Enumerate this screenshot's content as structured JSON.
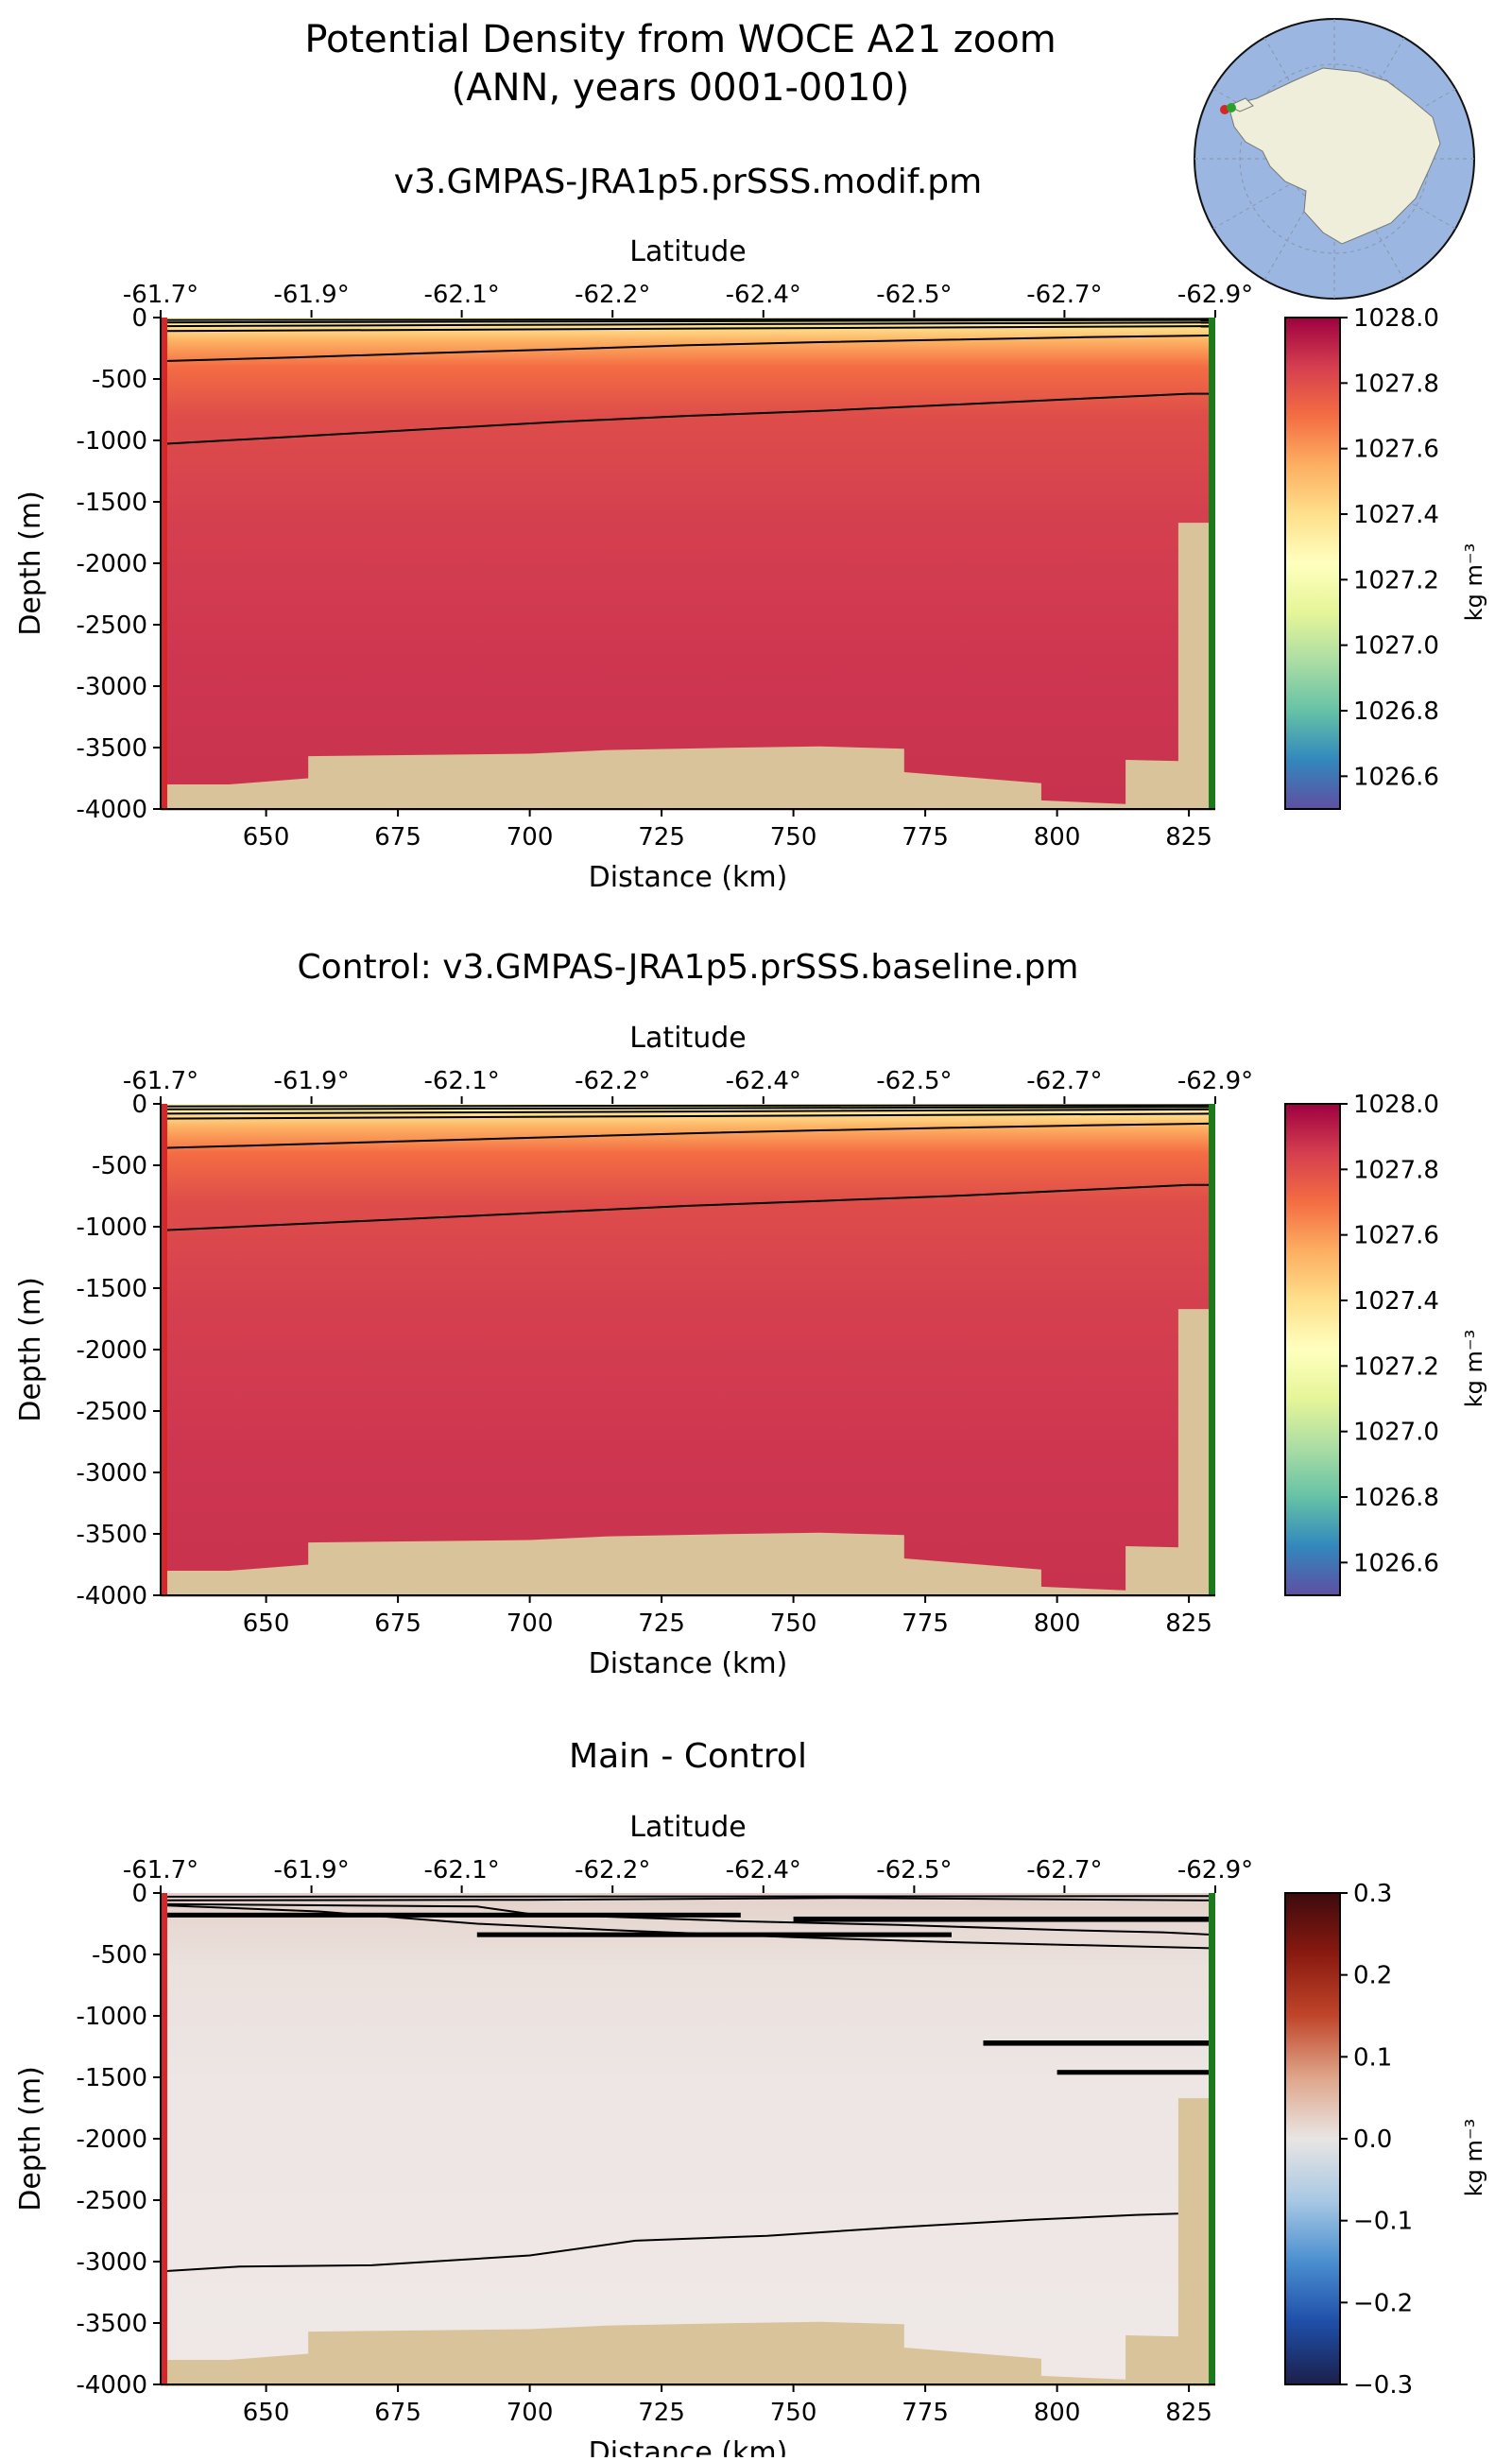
{
  "figure": {
    "title_line1": "Potential Density from WOCE A21 zoom",
    "title_line2": "(ANN, years 0001-0010)"
  },
  "inset_map": {
    "description": "South polar stereographic locator map of Antarctica",
    "ocean_color": "#9bb6e0",
    "land_color": "#efeedb",
    "section_start_color": "#d62728",
    "section_end_color": "#2ca02c"
  },
  "chart_data": [
    {
      "type": "heatmap",
      "title": "v3.GMPAS-JRA1p5.prSSS.modif.pm",
      "xlabel": "Distance (km)",
      "ylabel": "Depth (m)",
      "x2label": "Latitude",
      "xlim": [
        630,
        830
      ],
      "ylim": [
        -4000,
        0
      ],
      "xticks": [
        650,
        675,
        700,
        725,
        750,
        775,
        800,
        825
      ],
      "yticks": [
        0,
        -500,
        -1000,
        -1500,
        -2000,
        -2500,
        -3000,
        -3500,
        -4000
      ],
      "lat_ticks": [
        "-61.7°",
        "-61.9°",
        "-62.1°",
        "-62.2°",
        "-62.4°",
        "-62.5°",
        "-62.7°",
        "-62.9°"
      ],
      "lat_tick_km": [
        630,
        658.6,
        687.1,
        715.7,
        744.3,
        772.9,
        801.4,
        830
      ],
      "colorbar": {
        "label": "kg m⁻³",
        "range": [
          1026.5,
          1028.0
        ],
        "ticks": [
          "1028.0",
          "1027.8",
          "1027.6",
          "1027.4",
          "1027.2",
          "1027.0",
          "1026.8",
          "1026.6"
        ],
        "tick_values": [
          1028.0,
          1027.8,
          1027.6,
          1027.4,
          1027.2,
          1027.0,
          1026.8,
          1026.6
        ],
        "colormap": [
          "#5e4fa2",
          "#3288bd",
          "#66c2a5",
          "#abdda4",
          "#e6f598",
          "#ffffbf",
          "#fee08b",
          "#fdae61",
          "#f46d43",
          "#d53e4f",
          "#9e0142"
        ]
      },
      "contours": [
        {
          "x": [
            630,
            830
          ],
          "y": [
            -20,
            -10
          ]
        },
        {
          "x": [
            630,
            830
          ],
          "y": [
            -40,
            -20
          ]
        },
        {
          "x": [
            630,
            830
          ],
          "y": [
            -70,
            -40
          ]
        },
        {
          "x": [
            630,
            830
          ],
          "y": [
            -110,
            -70
          ]
        },
        {
          "x": [
            630,
            655,
            680,
            705,
            730,
            755,
            780,
            805,
            830
          ],
          "y": [
            -355,
            -325,
            -290,
            -260,
            -225,
            -200,
            -180,
            -160,
            -145
          ]
        },
        {
          "x": [
            630,
            655,
            680,
            705,
            730,
            755,
            780,
            805,
            825,
            830
          ],
          "y": [
            -1030,
            -970,
            -910,
            -850,
            -800,
            -760,
            -710,
            -660,
            -620,
            -620
          ]
        }
      ],
      "bathymetry": {
        "x": [
          630,
          643,
          658,
          658,
          700,
          715,
          740,
          755,
          771,
          771,
          797,
          797,
          813,
          813,
          823,
          823,
          830
        ],
        "depth": [
          -3800,
          -3800,
          -3750,
          -3570,
          -3550,
          -3520,
          -3500,
          -3490,
          -3510,
          -3700,
          -3790,
          -3930,
          -3960,
          -3600,
          -3610,
          -1670,
          -1670
        ]
      },
      "section_endpoints": {
        "start_color": "#d62728",
        "end_color": "#1b7a1b"
      }
    },
    {
      "type": "heatmap",
      "title": "Control: v3.GMPAS-JRA1p5.prSSS.baseline.pm",
      "xlabel": "Distance (km)",
      "ylabel": "Depth (m)",
      "x2label": "Latitude",
      "xlim": [
        630,
        830
      ],
      "ylim": [
        -4000,
        0
      ],
      "xticks": [
        650,
        675,
        700,
        725,
        750,
        775,
        800,
        825
      ],
      "yticks": [
        0,
        -500,
        -1000,
        -1500,
        -2000,
        -2500,
        -3000,
        -3500,
        -4000
      ],
      "lat_ticks": [
        "-61.7°",
        "-61.9°",
        "-62.1°",
        "-62.2°",
        "-62.4°",
        "-62.5°",
        "-62.7°",
        "-62.9°"
      ],
      "lat_tick_km": [
        630,
        658.6,
        687.1,
        715.7,
        744.3,
        772.9,
        801.4,
        830
      ],
      "colorbar": {
        "label": "kg m⁻³",
        "range": [
          1026.5,
          1028.0
        ],
        "ticks": [
          "1028.0",
          "1027.8",
          "1027.6",
          "1027.4",
          "1027.2",
          "1027.0",
          "1026.8",
          "1026.6"
        ],
        "tick_values": [
          1028.0,
          1027.8,
          1027.6,
          1027.4,
          1027.2,
          1027.0,
          1026.8,
          1026.6
        ],
        "colormap": [
          "#5e4fa2",
          "#3288bd",
          "#66c2a5",
          "#abdda4",
          "#e6f598",
          "#ffffbf",
          "#fee08b",
          "#fdae61",
          "#f46d43",
          "#d53e4f",
          "#9e0142"
        ]
      },
      "contours": [
        {
          "x": [
            630,
            830
          ],
          "y": [
            -20,
            -10
          ]
        },
        {
          "x": [
            630,
            830
          ],
          "y": [
            -45,
            -25
          ]
        },
        {
          "x": [
            630,
            830
          ],
          "y": [
            -80,
            -45
          ]
        },
        {
          "x": [
            630,
            830
          ],
          "y": [
            -120,
            -80
          ]
        },
        {
          "x": [
            630,
            655,
            680,
            705,
            730,
            755,
            780,
            805,
            830
          ],
          "y": [
            -360,
            -330,
            -300,
            -270,
            -240,
            -215,
            -195,
            -175,
            -160
          ]
        },
        {
          "x": [
            630,
            655,
            680,
            705,
            730,
            755,
            780,
            805,
            825,
            830
          ],
          "y": [
            -1030,
            -980,
            -930,
            -880,
            -830,
            -790,
            -750,
            -700,
            -660,
            -660
          ]
        }
      ],
      "bathymetry": {
        "x": [
          630,
          643,
          658,
          658,
          700,
          715,
          740,
          755,
          771,
          771,
          797,
          797,
          813,
          813,
          823,
          823,
          830
        ],
        "depth": [
          -3800,
          -3800,
          -3750,
          -3570,
          -3550,
          -3520,
          -3500,
          -3490,
          -3510,
          -3700,
          -3790,
          -3930,
          -3960,
          -3600,
          -3610,
          -1670,
          -1670
        ]
      },
      "section_endpoints": {
        "start_color": "#d62728",
        "end_color": "#1b7a1b"
      }
    },
    {
      "type": "heatmap",
      "title": "Main - Control",
      "xlabel": "Distance (km)",
      "ylabel": "Depth (m)",
      "x2label": "Latitude",
      "xlim": [
        630,
        830
      ],
      "ylim": [
        -4000,
        0
      ],
      "xticks": [
        650,
        675,
        700,
        725,
        750,
        775,
        800,
        825
      ],
      "yticks": [
        0,
        -500,
        -1000,
        -1500,
        -2000,
        -2500,
        -3000,
        -3500,
        -4000
      ],
      "lat_ticks": [
        "-61.7°",
        "-61.9°",
        "-62.1°",
        "-62.2°",
        "-62.4°",
        "-62.5°",
        "-62.7°",
        "-62.9°"
      ],
      "lat_tick_km": [
        630,
        658.6,
        687.1,
        715.7,
        744.3,
        772.9,
        801.4,
        830
      ],
      "colorbar": {
        "label": "kg m⁻³",
        "range": [
          -0.3,
          0.3
        ],
        "ticks": [
          "0.3",
          "0.2",
          "0.1",
          "0.0",
          "−0.1",
          "−0.2",
          "−0.3"
        ],
        "tick_values": [
          0.3,
          0.2,
          0.1,
          0.0,
          -0.1,
          -0.2,
          -0.3
        ],
        "colormap": [
          "#1b1f4a",
          "#1f4ea8",
          "#4a8fd0",
          "#a9c8e3",
          "#e9e5e3",
          "#dfa58a",
          "#c0452a",
          "#8a1a10",
          "#3d0a0e"
        ]
      },
      "contours": [
        {
          "x": [
            630,
            830
          ],
          "y": [
            -30,
            -25
          ]
        },
        {
          "x": [
            630,
            700,
            760,
            830
          ],
          "y": [
            -60,
            -55,
            -40,
            -60
          ]
        },
        {
          "x": [
            630,
            660,
            690,
            700,
            740,
            770,
            800,
            820,
            830
          ],
          "y": [
            -90,
            -100,
            -110,
            -170,
            -230,
            -260,
            -300,
            -320,
            -340
          ]
        },
        {
          "x": [
            630,
            660,
            690,
            720,
            750,
            780,
            810,
            830
          ],
          "y": [
            -100,
            -150,
            -250,
            -310,
            -360,
            -400,
            -430,
            -450
          ]
        },
        {
          "x": [
            630,
            645,
            670,
            700,
            720,
            745,
            770,
            795,
            815,
            823
          ],
          "y": [
            -3080,
            -3040,
            -3030,
            -2950,
            -2830,
            -2790,
            -2720,
            -2660,
            -2620,
            -2610
          ]
        }
      ],
      "bathymetry": {
        "x": [
          630,
          643,
          658,
          658,
          700,
          715,
          740,
          755,
          771,
          771,
          797,
          797,
          813,
          813,
          823,
          823,
          830
        ],
        "depth": [
          -3800,
          -3800,
          -3750,
          -3570,
          -3550,
          -3520,
          -3500,
          -3490,
          -3510,
          -3700,
          -3790,
          -3930,
          -3960,
          -3600,
          -3610,
          -1670,
          -1670
        ]
      },
      "section_endpoints": {
        "start_color": "#d62728",
        "end_color": "#1b7a1b"
      }
    }
  ]
}
